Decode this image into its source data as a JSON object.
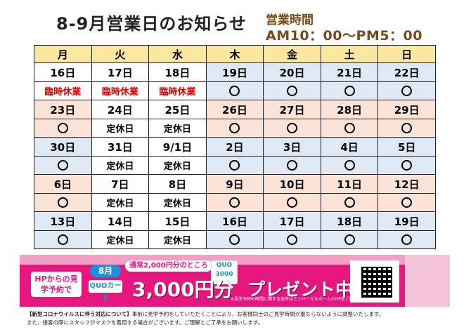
{
  "title": "8-9月営業日のお知らせ",
  "hours": {
    "label": "営業時間",
    "value": "AM10：00〜PM5：00"
  },
  "weekdays": [
    "月",
    "火",
    "水",
    "木",
    "金",
    "土",
    "日"
  ],
  "weeks": [
    {
      "dates": [
        "16日",
        "17日",
        "18日",
        "19日",
        "20日",
        "21日",
        "22日"
      ],
      "status": [
        "臨時休業",
        "臨時休業",
        "臨時休業",
        "○",
        "○",
        "○",
        "○"
      ],
      "shade": [
        "wh",
        "wh",
        "wh",
        "bl",
        "bl",
        "bl",
        "bl"
      ]
    },
    {
      "dates": [
        "23日",
        "24日",
        "25日",
        "26日",
        "27日",
        "28日",
        "29日"
      ],
      "status": [
        "○",
        "定休日",
        "定休日",
        "○",
        "○",
        "○",
        "○"
      ],
      "shade": [
        "pk",
        "wh",
        "wh",
        "pk",
        "pk",
        "pk",
        "pk"
      ]
    },
    {
      "dates": [
        "30日",
        "31日",
        "9/1日",
        "2日",
        "3日",
        "4日",
        "5日"
      ],
      "status": [
        "○",
        "定休日",
        "定休日",
        "○",
        "○",
        "○",
        "○"
      ],
      "shade": [
        "bl",
        "wh",
        "wh",
        "bl",
        "bl",
        "bl",
        "bl"
      ]
    },
    {
      "dates": [
        "6日",
        "7日",
        "8日",
        "9日",
        "10日",
        "11日",
        "12日"
      ],
      "status": [
        "○",
        "定休日",
        "定休日",
        "○",
        "○",
        "○",
        "○"
      ],
      "shade": [
        "pk",
        "wh",
        "wh",
        "pk",
        "pk",
        "pk",
        "pk"
      ]
    },
    {
      "dates": [
        "13日",
        "14日",
        "15日",
        "16日",
        "17日",
        "18日",
        "19日"
      ],
      "status": [
        "○",
        "定休日",
        "定休日",
        "○",
        "○",
        "○",
        "○"
      ],
      "shade": [
        "bl",
        "wh",
        "wh",
        "bl",
        "bl",
        "bl",
        "bl"
      ]
    }
  ],
  "banner": {
    "left_tag": "HPからの見学予約で",
    "month": "8月",
    "note": "通常2,000円分のところ",
    "card_label": "QUOカード",
    "card_text": "QUO 3000",
    "amount": "3,000円分",
    "present": "プレゼント中!",
    "fine_print": "※見学予約の時間に関する条件はエンバーマルホームのHPをご確認ください。"
  },
  "footer": {
    "heading": "【新型コロナウイルスに伴う対応について】",
    "line1": "事前に見学予約をしていただくことにより、お客様同士のご見学時間が重ならないように調整いたします。",
    "line2": "また、接客の際にスタッフがマスクを着用する場合がございます。ご理解とご了承をお願いします。"
  },
  "colors": {
    "header_bg": "#fbe6a2",
    "blue_row": "#dfe9f5",
    "pink_row": "#fbe3d7",
    "closed_red": "#e00000",
    "banner_pink": "#e5177e"
  }
}
